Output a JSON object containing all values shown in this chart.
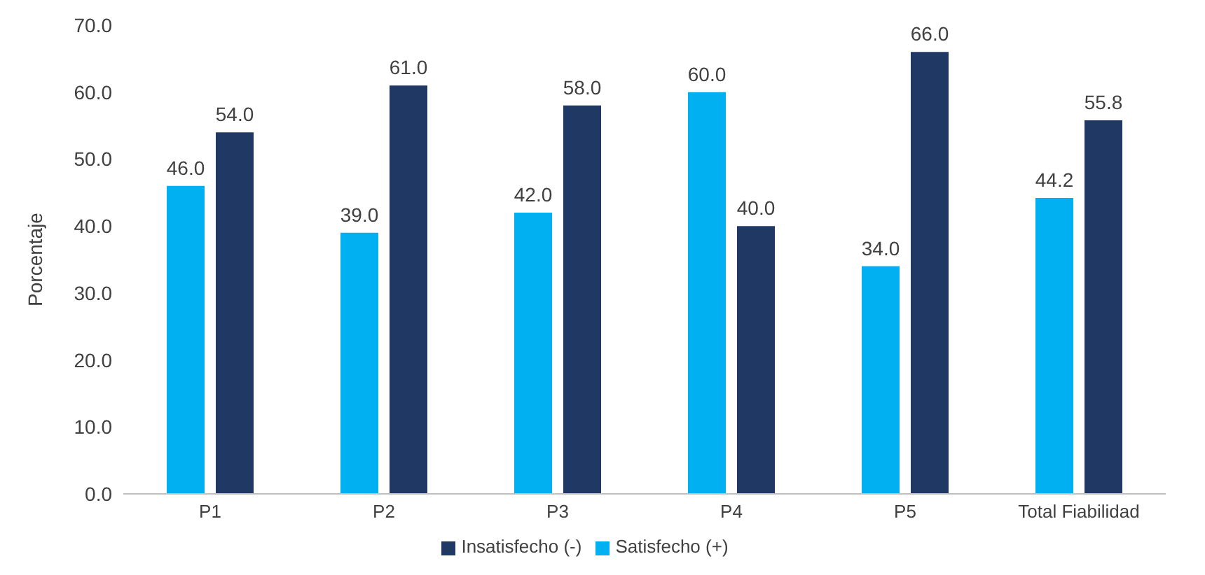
{
  "chart_data": {
    "type": "bar",
    "ylabel": "Porcentaje",
    "categories": [
      "P1",
      "P2",
      "P3",
      "P4",
      "P5",
      "Total Fiabilidad"
    ],
    "series": [
      {
        "name": "Satisfecho (+)",
        "color": "#00b0f0",
        "values": [
          46,
          39,
          42,
          60,
          34,
          44.2
        ],
        "value_labels": [
          "46.0",
          "39.0",
          "42.0",
          "60.0",
          "34.0",
          "44.2"
        ]
      },
      {
        "name": "Insatisfecho (-)",
        "color": "#1f3864",
        "values": [
          54,
          61,
          58,
          40,
          66,
          55.8
        ],
        "value_labels": [
          "54.0",
          "61.0",
          "58.0",
          "40.0",
          "66.0",
          "55.8"
        ]
      }
    ],
    "ylim": [
      0,
      70
    ],
    "yticks": [
      {
        "value": 0,
        "label": "0.0"
      },
      {
        "value": 10,
        "label": "10.0"
      },
      {
        "value": 20,
        "label": "20.0"
      },
      {
        "value": 30,
        "label": "30.0"
      },
      {
        "value": 40,
        "label": "40.0"
      },
      {
        "value": 50,
        "label": "50.0"
      },
      {
        "value": 60,
        "label": "60.0"
      },
      {
        "value": 70,
        "label": "70.0"
      }
    ],
    "grid": false,
    "legend": "bottom"
  }
}
